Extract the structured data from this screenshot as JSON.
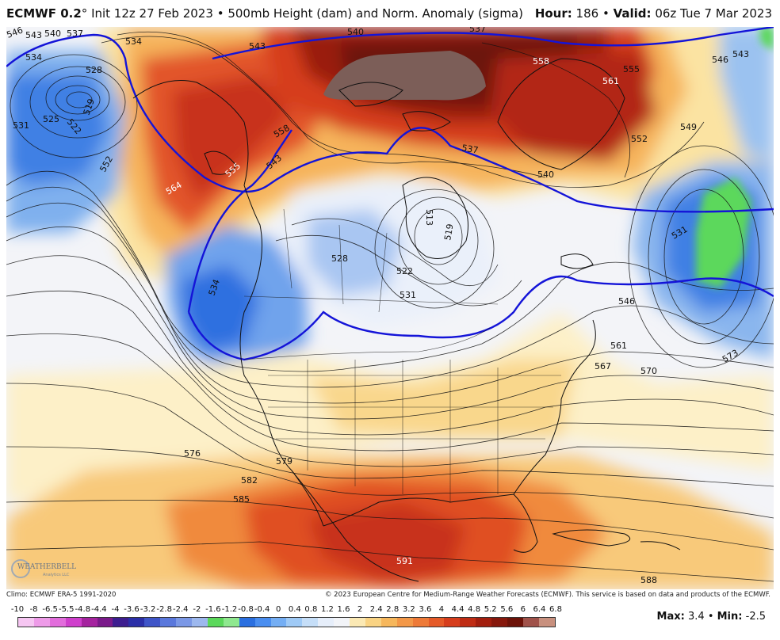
{
  "header": {
    "model": "ECMWF 0.2",
    "degree_mark": "°",
    "init_text": "Init 12z 27 Feb 2023",
    "separator": "•",
    "product": "500mb Height (dam) and Norm. Anomaly (sigma)",
    "hour_label": "Hour:",
    "hour_value": "186",
    "valid_label": "Valid:",
    "valid_value": "06z Tue 7 Mar 2023"
  },
  "footer": {
    "climo": "Climo: ECMWF ERA-5 1991-2020",
    "copyright": "© 2023 European Centre for Medium-Range Weather Forecasts (ECMWF). This service is based on data and products of the ECMWF.",
    "max_label": "Max:",
    "max_value": "3.4",
    "min_label": "Min:",
    "min_value": "-2.5",
    "separator": "•"
  },
  "logo": {
    "text": "WEATHERBELL",
    "sub": "Analytics LLC"
  },
  "scale": {
    "labels": [
      "-10",
      "-8",
      "-6.5",
      "-5.5",
      "-4.8",
      "-4.4",
      "-4",
      "-3.6",
      "-3.2",
      "-2.8",
      "-2.4",
      "-2",
      "-1.6",
      "-1.2",
      "-0.8",
      "-0.4",
      "0",
      "0.4",
      "0.8",
      "1.2",
      "1.6",
      "2",
      "2.4",
      "2.8",
      "3.2",
      "3.6",
      "4",
      "4.4",
      "4.8",
      "5.2",
      "5.6",
      "6",
      "6.4",
      "6.8"
    ],
    "colors": [
      "#f6c6f2",
      "#ee9be8",
      "#e26ddc",
      "#cf3fcc",
      "#a5239f",
      "#7a1a8a",
      "#3d1d8f",
      "#2b2fa8",
      "#3f55c8",
      "#5a78dc",
      "#7b98e6",
      "#9db8ee",
      "#5bd85b",
      "#8fe88f",
      "#2a6fe0",
      "#4a8ef0",
      "#74aef4",
      "#9fcaf6",
      "#c5def8",
      "#e6eefa",
      "#f2f4f8",
      "#fbe9b4",
      "#f9d383",
      "#f6b75c",
      "#f39848",
      "#ee7a38",
      "#e55a28",
      "#d63d1c",
      "#bf2c14",
      "#a21e0e",
      "#86180c",
      "#6c1208",
      "#a0524a",
      "#c8907e"
    ]
  },
  "map": {
    "contour_labels": [
      {
        "text": "546"
      },
      {
        "text": "543"
      },
      {
        "text": "540"
      },
      {
        "text": "537"
      },
      {
        "text": "534"
      },
      {
        "text": "534"
      },
      {
        "text": "528"
      },
      {
        "text": "525"
      },
      {
        "text": "522"
      },
      {
        "text": "519"
      },
      {
        "text": "531"
      },
      {
        "text": "552"
      },
      {
        "text": "564"
      },
      {
        "text": "555"
      },
      {
        "text": "558"
      },
      {
        "text": "543"
      },
      {
        "text": "540"
      },
      {
        "text": "537"
      },
      {
        "text": "543"
      },
      {
        "text": "558"
      },
      {
        "text": "561"
      },
      {
        "text": "555"
      },
      {
        "text": "546"
      },
      {
        "text": "543"
      },
      {
        "text": "549"
      },
      {
        "text": "552"
      },
      {
        "text": "513"
      },
      {
        "text": "519"
      },
      {
        "text": "528"
      },
      {
        "text": "522"
      },
      {
        "text": "531"
      },
      {
        "text": "534"
      },
      {
        "text": "531"
      },
      {
        "text": "546"
      },
      {
        "text": "561"
      },
      {
        "text": "567"
      },
      {
        "text": "570"
      },
      {
        "text": "573"
      },
      {
        "text": "576"
      },
      {
        "text": "579"
      },
      {
        "text": "582"
      },
      {
        "text": "585"
      },
      {
        "text": "591"
      },
      {
        "text": "588"
      },
      {
        "text": "537"
      },
      {
        "text": "540"
      }
    ]
  }
}
